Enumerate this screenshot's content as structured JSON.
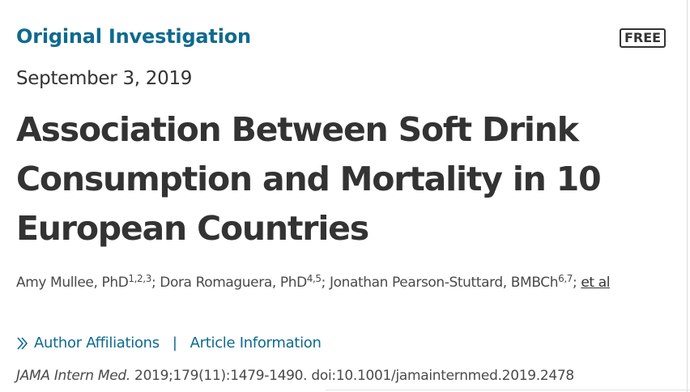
{
  "article": {
    "type_label": "Original Investigation",
    "badge": "FREE",
    "date": "September 3, 2019",
    "title": "Association Between Soft Drink Consumption and Mortality in 10 European Countries",
    "authors": [
      {
        "name": "Amy Mullee, PhD",
        "affiliations": "1,2,3"
      },
      {
        "name": "Dora Romaguera, PhD",
        "affiliations": "4,5"
      },
      {
        "name": "Jonathan Pearson-Stuttard, BMBCh",
        "affiliations": "6,7"
      }
    ],
    "author_separator": "; ",
    "et_al_label": "et al",
    "links": {
      "author_affiliations": "Author Affiliations",
      "separator": "|",
      "article_information": "Article Information"
    },
    "citation": {
      "journal": "JAMA Intern Med.",
      "details": " 2019;179(11):1479-1490. doi:10.1001/jamainternmed.2019.2478"
    }
  },
  "icons": {
    "expand": "chevron-double-right-icon"
  },
  "colors": {
    "accent": "#0e6a8f",
    "text": "#333333",
    "muted_text": "#4a4a4a"
  }
}
